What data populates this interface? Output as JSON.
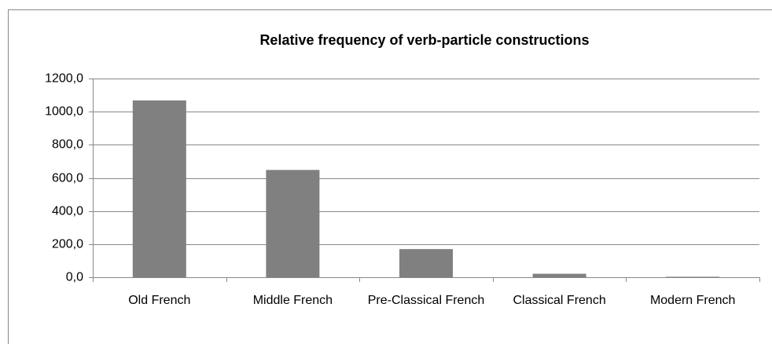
{
  "chart_data": {
    "type": "bar",
    "title": "Relative frequency of verb-particle constructions",
    "categories": [
      "Old French",
      "Middle French",
      "Pre-Classical French",
      "Classical French",
      "Modern French"
    ],
    "values": [
      1068,
      648,
      170,
      21,
      3
    ],
    "color": "#808080",
    "ylim": [
      0,
      1200
    ],
    "yticks": [
      {
        "value": 0,
        "label": "0,0"
      },
      {
        "value": 200,
        "label": "200,0"
      },
      {
        "value": 400,
        "label": "400,0"
      },
      {
        "value": 600,
        "label": "600,0"
      },
      {
        "value": 800,
        "label": "800,0"
      },
      {
        "value": 1000,
        "label": "1000,0"
      },
      {
        "value": 1200,
        "label": "1200,0"
      }
    ],
    "grid": true
  }
}
